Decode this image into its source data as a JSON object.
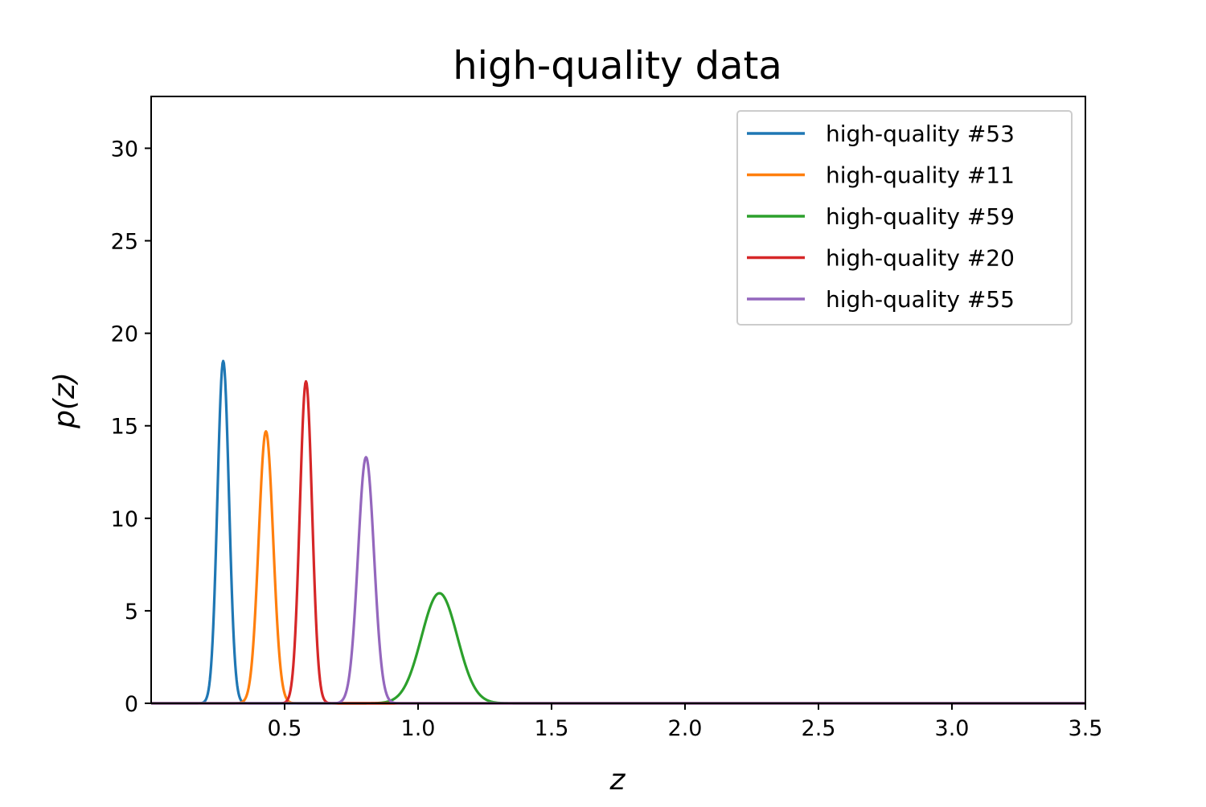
{
  "chart_data": {
    "type": "line",
    "title": "high-quality data",
    "xlabel": "z",
    "ylabel": "p(z)",
    "xlim": [
      0.0,
      3.5
    ],
    "ylim": [
      0,
      32.8
    ],
    "xticks": [
      0.5,
      1.0,
      1.5,
      2.0,
      2.5,
      3.0,
      3.5
    ],
    "xtick_labels": [
      "0.5",
      "1.0",
      "1.5",
      "2.0",
      "2.5",
      "3.0",
      "3.5"
    ],
    "yticks": [
      0,
      5,
      10,
      15,
      20,
      25,
      30
    ],
    "ytick_labels": [
      "0",
      "5",
      "10",
      "15",
      "20",
      "25",
      "30"
    ],
    "grid": false,
    "legend_position": "top-right",
    "series": [
      {
        "name": "high-quality #53",
        "color": "#1f77b4",
        "peak_z": 0.27,
        "peak_p": 18.5,
        "sigma": 0.0216
      },
      {
        "name": "high-quality #11",
        "color": "#ff7f0e",
        "peak_z": 0.43,
        "peak_p": 14.7,
        "sigma": 0.0271
      },
      {
        "name": "high-quality #59",
        "color": "#2ca02c",
        "peak_z": 1.08,
        "peak_p": 5.95,
        "sigma": 0.067
      },
      {
        "name": "high-quality #20",
        "color": "#d62728",
        "peak_z": 0.58,
        "peak_p": 17.4,
        "sigma": 0.0229
      },
      {
        "name": "high-quality #55",
        "color": "#9467bd",
        "peak_z": 0.805,
        "peak_p": 13.3,
        "sigma": 0.03
      }
    ]
  }
}
